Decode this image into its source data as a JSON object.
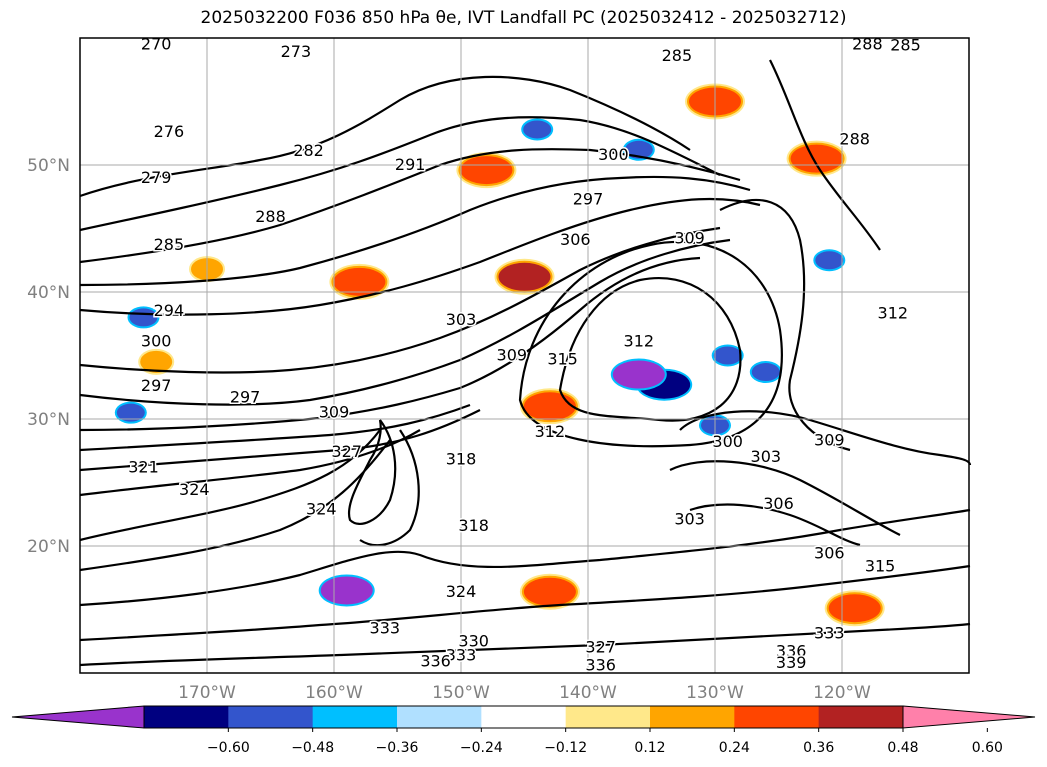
{
  "title": "2025032200 F036 850 hPa θe, IVT Landfall PC (2025032412 - 2025032712)",
  "chart_data": {
    "type": "contour map",
    "title": "2025032200 F036 850 hPa θe, IVT Landfall PC (2025032412 - 2025032712)",
    "lon_range": [
      -180,
      -110
    ],
    "lat_range": [
      10,
      60
    ],
    "lat_ticks": [
      "20°N",
      "30°N",
      "40°N",
      "50°N"
    ],
    "lat_tick_values": [
      20,
      30,
      40,
      50
    ],
    "lon_ticks": [
      "170°W",
      "160°W",
      "150°W",
      "140°W",
      "130°W",
      "120°W"
    ],
    "lon_tick_values": [
      -170,
      -160,
      -150,
      -140,
      -130,
      -120
    ],
    "grid": true,
    "contour_labels": [
      {
        "text": "270",
        "lon": -174,
        "lat": 59.1
      },
      {
        "text": "273",
        "lon": -163,
        "lat": 58.5
      },
      {
        "text": "276",
        "lon": -173,
        "lat": 52.2
      },
      {
        "text": "279",
        "lon": -174,
        "lat": 48.6
      },
      {
        "text": "282",
        "lon": -162,
        "lat": 50.7
      },
      {
        "text": "288",
        "lon": -165,
        "lat": 45.5
      },
      {
        "text": "285",
        "lon": -173,
        "lat": 43.3
      },
      {
        "text": "291",
        "lon": -154,
        "lat": 49.6
      },
      {
        "text": "300",
        "lon": -138,
        "lat": 50.4
      },
      {
        "text": "297",
        "lon": -140,
        "lat": 46.9
      },
      {
        "text": "306",
        "lon": -141,
        "lat": 43.7
      },
      {
        "text": "309",
        "lon": -132,
        "lat": 43.8
      },
      {
        "text": "303",
        "lon": -150,
        "lat": 37.4
      },
      {
        "text": "294",
        "lon": -173,
        "lat": 38.1
      },
      {
        "text": "300",
        "lon": -174,
        "lat": 35.7
      },
      {
        "text": "297",
        "lon": -174,
        "lat": 32.2
      },
      {
        "text": "297",
        "lon": -167,
        "lat": 31.3
      },
      {
        "text": "309",
        "lon": -160,
        "lat": 30.1
      },
      {
        "text": "309",
        "lon": -146,
        "lat": 34.6
      },
      {
        "text": "315",
        "lon": -142,
        "lat": 34.3
      },
      {
        "text": "312",
        "lon": -136,
        "lat": 35.7
      },
      {
        "text": "312",
        "lon": -143,
        "lat": 28.6
      },
      {
        "text": "312",
        "lon": -116,
        "lat": 37.9
      },
      {
        "text": "300",
        "lon": -129,
        "lat": 27.8
      },
      {
        "text": "303",
        "lon": -126,
        "lat": 26.6
      },
      {
        "text": "309",
        "lon": -121,
        "lat": 27.9
      },
      {
        "text": "306",
        "lon": -125,
        "lat": 22.9
      },
      {
        "text": "303",
        "lon": -132,
        "lat": 21.7
      },
      {
        "text": "306",
        "lon": -121,
        "lat": 19.0
      },
      {
        "text": "315",
        "lon": -117,
        "lat": 18.0
      },
      {
        "text": "318",
        "lon": -150,
        "lat": 26.4
      },
      {
        "text": "318",
        "lon": -149,
        "lat": 21.2
      },
      {
        "text": "321",
        "lon": -175,
        "lat": 25.8
      },
      {
        "text": "324",
        "lon": -171,
        "lat": 24.0
      },
      {
        "text": "324",
        "lon": -161,
        "lat": 22.5
      },
      {
        "text": "327",
        "lon": -159,
        "lat": 27.0
      },
      {
        "text": "324",
        "lon": -150,
        "lat": 16.0
      },
      {
        "text": "333",
        "lon": -156,
        "lat": 13.1
      },
      {
        "text": "330",
        "lon": -149,
        "lat": 12.1
      },
      {
        "text": "333",
        "lon": -150,
        "lat": 11.0
      },
      {
        "text": "336",
        "lon": -152,
        "lat": 10.5
      },
      {
        "text": "327",
        "lon": -139,
        "lat": 11.6
      },
      {
        "text": "336",
        "lon": -139,
        "lat": 10.2
      },
      {
        "text": "333",
        "lon": -121,
        "lat": 12.7
      },
      {
        "text": "336",
        "lon": -124,
        "lat": 11.3
      },
      {
        "text": "339",
        "lon": -124,
        "lat": 10.4
      },
      {
        "text": "285",
        "lon": -115,
        "lat": 59.0
      },
      {
        "text": "288",
        "lon": -118,
        "lat": 59.1
      },
      {
        "text": "285",
        "lon": -133,
        "lat": 58.2
      },
      {
        "text": "288",
        "lon": -119,
        "lat": 51.6
      }
    ],
    "colorbar": {
      "colors": [
        "#9933cc",
        "#000080",
        "#3355cc",
        "#00bfff",
        "#b0e0ff",
        "#ffffff",
        "#ffe88a",
        "#ffa500",
        "#ff4500",
        "#b22222",
        "#ff80aa"
      ],
      "tick_labels": [
        "−0.60",
        "−0.48",
        "−0.36",
        "−0.24",
        "−0.12",
        "0.12",
        "0.24",
        "0.36",
        "0.48",
        "0.60"
      ],
      "tick_values": [
        -0.6,
        -0.48,
        -0.36,
        -0.24,
        -0.12,
        0.12,
        0.24,
        0.36,
        0.48,
        0.6
      ],
      "extend": "both"
    },
    "shaded_patches": [
      {
        "lon": -170,
        "lat": 41.8,
        "value": 0.36
      },
      {
        "lon": -158,
        "lat": 40.8,
        "value": 0.48
      },
      {
        "lon": -145,
        "lat": 41.2,
        "value": 0.6
      },
      {
        "lon": -143,
        "lat": 31.0,
        "value": 0.48
      },
      {
        "lon": -148,
        "lat": 49.6,
        "value": 0.4
      },
      {
        "lon": -122,
        "lat": 50.5,
        "value": 0.48
      },
      {
        "lon": -130,
        "lat": 55.0,
        "value": 0.4
      },
      {
        "lon": -143,
        "lat": 16.4,
        "value": 0.4
      },
      {
        "lon": -119,
        "lat": 15.1,
        "value": 0.4
      },
      {
        "lon": -174,
        "lat": 34.5,
        "value": 0.36
      },
      {
        "lon": -175,
        "lat": 38.0,
        "value": -0.36
      },
      {
        "lon": -176,
        "lat": 30.5,
        "value": -0.36
      },
      {
        "lon": -159,
        "lat": 16.5,
        "value": -0.6
      },
      {
        "lon": -134,
        "lat": 32.7,
        "value": -0.48
      },
      {
        "lon": -136,
        "lat": 33.5,
        "value": -0.6
      },
      {
        "lon": -130,
        "lat": 29.5,
        "value": -0.36
      },
      {
        "lon": -136,
        "lat": 51.2,
        "value": -0.36
      },
      {
        "lon": -144,
        "lat": 52.8,
        "value": -0.36
      },
      {
        "lon": -121,
        "lat": 42.5,
        "value": -0.36
      },
      {
        "lon": -129,
        "lat": 35.0,
        "value": -0.36
      },
      {
        "lon": -126,
        "lat": 33.7,
        "value": -0.36
      }
    ]
  }
}
